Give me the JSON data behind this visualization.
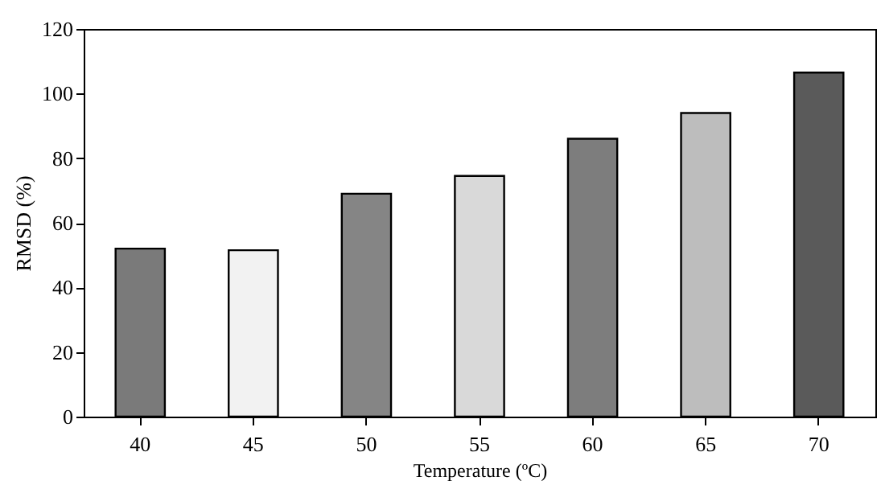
{
  "chart_data": {
    "type": "bar",
    "xlabel": "Temperature (ºC)",
    "ylabel": "RMSD (%)",
    "categories": [
      "40",
      "45",
      "50",
      "55",
      "60",
      "65",
      "70"
    ],
    "values": [
      52,
      51.5,
      69,
      74.5,
      86,
      94,
      106.5
    ],
    "colors": [
      "#7a7a7a",
      "#f2f2f2",
      "#858585",
      "#d9d9d9",
      "#7d7d7d",
      "#bdbdbd",
      "#5a5a5a"
    ],
    "ylim": [
      0,
      120
    ],
    "yticks": [
      0,
      20,
      40,
      60,
      80,
      100,
      120
    ],
    "grid": false
  }
}
